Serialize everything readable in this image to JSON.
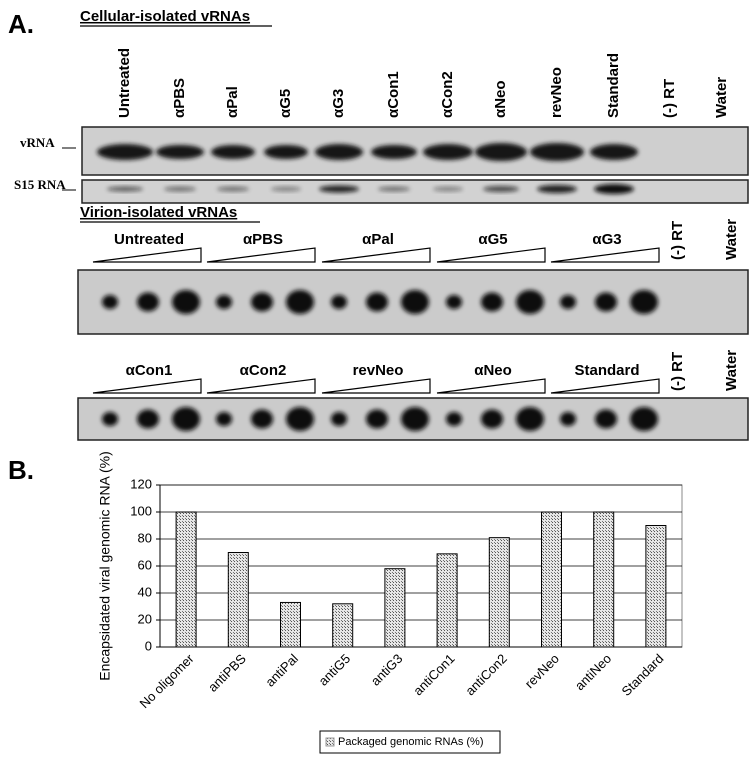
{
  "panel_a": {
    "label": "A.",
    "cellular": {
      "title": "Cellular-isolated vRNAs",
      "lanes": [
        "Untreated",
        "αPBS",
        "αPal",
        "αG5",
        "αG3",
        "αCon1",
        "αCon2",
        "αNeo",
        "revNeo",
        "Standard",
        "(-) RT",
        "Water"
      ],
      "rows": [
        "vRNA",
        "S15 RNA"
      ]
    },
    "virion": {
      "title": "Virion-isolated vRNAs",
      "groups_top": [
        "Untreated",
        "αPBS",
        "αPal",
        "αG5",
        "αG3"
      ],
      "controls_top": [
        "(-) RT",
        "Water"
      ],
      "groups_bottom": [
        "αCon1",
        "αCon2",
        "revNeo",
        "αNeo",
        "Standard"
      ],
      "controls_bottom": [
        "(-) RT",
        "Water"
      ]
    }
  },
  "panel_b": {
    "label": "B."
  },
  "chart_data": {
    "type": "bar",
    "y_label": "Encapsidated viral genomic RNA (%)",
    "categories": [
      "No oligomer",
      "antiPBS",
      "antiPal",
      "antiG5",
      "antiG3",
      "antiCon1",
      "antiCon2",
      "revNeo",
      "antiNeo",
      "Standard"
    ],
    "series": [
      {
        "name": "Packaged genomic RNAs (%)",
        "color": "#9a9a9a",
        "values": [
          100,
          70,
          33,
          32,
          58,
          69,
          81,
          100,
          100,
          90
        ]
      }
    ],
    "ylim": [
      0,
      120
    ],
    "yticks": [
      0,
      20,
      40,
      60,
      80,
      100,
      120
    ],
    "grid": true,
    "legend": "bottom"
  }
}
